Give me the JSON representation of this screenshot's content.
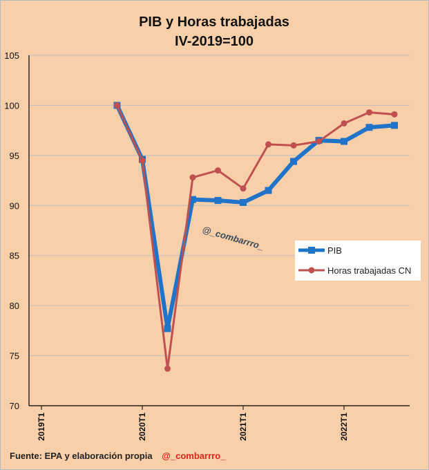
{
  "chart_data": {
    "type": "line",
    "title": "PIB y Horas trabajadas",
    "subtitle": "IV-2019=100",
    "ylim": [
      70,
      105
    ],
    "yticks": [
      70,
      75,
      80,
      85,
      90,
      95,
      100,
      105
    ],
    "xlabels": [
      "2019T1",
      "2020T1",
      "2021T1",
      "2022T1"
    ],
    "x_periods": [
      "2019T4",
      "2020T1",
      "2020T2",
      "2020T3",
      "2020T4",
      "2021T1",
      "2021T2",
      "2021T3",
      "2021T4",
      "2022T1",
      "2022T2",
      "2022T3"
    ],
    "series": [
      {
        "name": "PIB",
        "color": "#1f73c8",
        "values": [
          100.0,
          94.6,
          77.7,
          90.6,
          90.5,
          90.3,
          91.5,
          94.4,
          96.5,
          96.4,
          97.8,
          98.0
        ]
      },
      {
        "name": "Horas trabajadas CN",
        "color": "#c0504d",
        "values": [
          100.0,
          94.5,
          73.7,
          92.8,
          93.5,
          91.7,
          96.1,
          96.0,
          96.4,
          98.2,
          99.3,
          99.1
        ]
      }
    ],
    "watermark": "@_combarrro_",
    "legend_position": "right"
  },
  "footer": {
    "source": "Fuente: EPA y elaboración propia",
    "handle": "@_combarrro_"
  }
}
